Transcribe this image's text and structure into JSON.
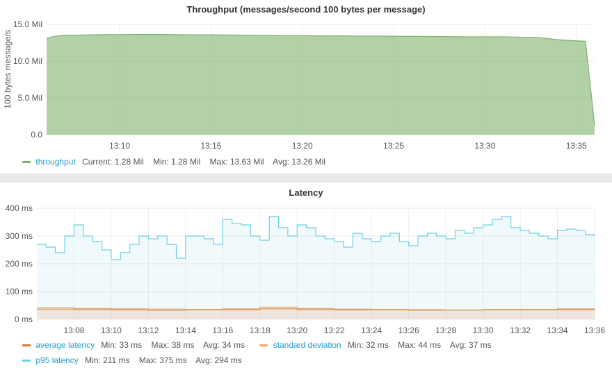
{
  "chart_data": [
    {
      "type": "area",
      "title": "Throughput (messages/second 100 bytes per message)",
      "ylabel": "100 bytes message/s",
      "y_ticks": [
        "0.0",
        "5.0 Mil",
        "10.0 Mil",
        "15.0 Mil"
      ],
      "x_ticks": [
        "13:10",
        "13:15",
        "13:20",
        "13:25",
        "13:30",
        "13:35"
      ],
      "ylim": [
        0,
        15000000
      ],
      "grid": true,
      "legend_position": "bottom-left",
      "series": [
        {
          "name": "throughput",
          "color": "#7eb26d",
          "stats": [
            "Current: 1.28 Mil",
            "Min: 1.28 Mil",
            "Max: 13.63 Mil",
            "Avg: 13.26 Mil"
          ],
          "points": [
            [
              "13:06",
              13.1
            ],
            [
              "13:06:30",
              13.4
            ],
            [
              "13:07",
              13.5
            ],
            [
              "13:08",
              13.55
            ],
            [
              "13:09",
              13.6
            ],
            [
              "13:10",
              13.6
            ],
            [
              "13:11",
              13.62
            ],
            [
              "13:12",
              13.63
            ],
            [
              "13:13",
              13.6
            ],
            [
              "13:14",
              13.58
            ],
            [
              "13:15",
              13.57
            ],
            [
              "13:16",
              13.55
            ],
            [
              "13:17",
              13.52
            ],
            [
              "13:18",
              13.5
            ],
            [
              "13:19",
              13.45
            ],
            [
              "13:20",
              13.45
            ],
            [
              "13:21",
              13.42
            ],
            [
              "13:22",
              13.43
            ],
            [
              "13:23",
              13.4
            ],
            [
              "13:24",
              13.4
            ],
            [
              "13:25",
              13.38
            ],
            [
              "13:26",
              13.36
            ],
            [
              "13:27",
              13.35
            ],
            [
              "13:28",
              13.33
            ],
            [
              "13:29",
              13.3
            ],
            [
              "13:30",
              13.3
            ],
            [
              "13:31",
              13.3
            ],
            [
              "13:32",
              13.25
            ],
            [
              "13:33",
              13.2
            ],
            [
              "13:34",
              12.9
            ],
            [
              "13:35",
              12.75
            ],
            [
              "13:35:30",
              12.7
            ],
            [
              "13:36",
              1.28
            ]
          ]
        }
      ]
    },
    {
      "type": "line",
      "title": "Latency",
      "y_ticks": [
        "0 ms",
        "100 ms",
        "200 ms",
        "300 ms",
        "400 ms"
      ],
      "x_ticks": [
        "13:08",
        "13:10",
        "13:12",
        "13:14",
        "13:16",
        "13:18",
        "13:20",
        "13:22",
        "13:24",
        "13:26",
        "13:28",
        "13:30",
        "13:32",
        "13:34",
        "13:36"
      ],
      "ylim": [
        0,
        400
      ],
      "grid": true,
      "legend_position": "bottom-left",
      "series": [
        {
          "name": "average latency",
          "color": "#e0752d",
          "stats": [
            "Min: 33 ms",
            "Max: 38 ms",
            "Avg: 34 ms"
          ],
          "points": [
            [
              "13:06",
              37
            ],
            [
              "13:08",
              35
            ],
            [
              "13:10",
              34
            ],
            [
              "13:12",
              33
            ],
            [
              "13:14",
              34
            ],
            [
              "13:16",
              35
            ],
            [
              "13:18",
              38
            ],
            [
              "13:20",
              35
            ],
            [
              "13:22",
              34
            ],
            [
              "13:24",
              34
            ],
            [
              "13:26",
              33
            ],
            [
              "13:28",
              33
            ],
            [
              "13:30",
              34
            ],
            [
              "13:32",
              34
            ],
            [
              "13:34",
              35
            ],
            [
              "13:36",
              35
            ]
          ]
        },
        {
          "name": "standard deviation",
          "color": "#f2a863",
          "stats": [
            "Min: 32 ms",
            "Max: 44 ms",
            "Avg: 37 ms"
          ],
          "points": [
            [
              "13:06",
              43
            ],
            [
              "13:08",
              39
            ],
            [
              "13:10",
              38
            ],
            [
              "13:12",
              37
            ],
            [
              "13:14",
              36
            ],
            [
              "13:16",
              38
            ],
            [
              "13:18",
              44
            ],
            [
              "13:20",
              39
            ],
            [
              "13:22",
              37
            ],
            [
              "13:24",
              36
            ],
            [
              "13:26",
              35
            ],
            [
              "13:28",
              34
            ],
            [
              "13:30",
              36
            ],
            [
              "13:32",
              36
            ],
            [
              "13:34",
              38
            ],
            [
              "13:36",
              37
            ]
          ]
        },
        {
          "name": "p95 latency",
          "color": "#6ed0e0",
          "stats": [
            "Min: 211 ms",
            "Max: 375 ms",
            "Avg: 294 ms"
          ],
          "points": [
            [
              "13:06",
              270
            ],
            [
              "13:06:30",
              260
            ],
            [
              "13:07",
              240
            ],
            [
              "13:07:30",
              300
            ],
            [
              "13:08",
              340
            ],
            [
              "13:08:30",
              300
            ],
            [
              "13:09",
              280
            ],
            [
              "13:09:30",
              250
            ],
            [
              "13:10",
              215
            ],
            [
              "13:10:30",
              240
            ],
            [
              "13:11",
              270
            ],
            [
              "13:11:30",
              300
            ],
            [
              "13:12",
              290
            ],
            [
              "13:12:30",
              300
            ],
            [
              "13:13",
              270
            ],
            [
              "13:13:30",
              220
            ],
            [
              "13:14",
              300
            ],
            [
              "13:14:30",
              300
            ],
            [
              "13:15",
              290
            ],
            [
              "13:15:30",
              270
            ],
            [
              "13:16",
              360
            ],
            [
              "13:16:30",
              345
            ],
            [
              "13:17",
              340
            ],
            [
              "13:17:30",
              300
            ],
            [
              "13:18",
              285
            ],
            [
              "13:18:30",
              370
            ],
            [
              "13:19",
              330
            ],
            [
              "13:19:30",
              300
            ],
            [
              "13:20",
              340
            ],
            [
              "13:20:30",
              330
            ],
            [
              "13:21",
              300
            ],
            [
              "13:21:30",
              290
            ],
            [
              "13:22",
              280
            ],
            [
              "13:22:30",
              260
            ],
            [
              "13:23",
              310
            ],
            [
              "13:23:30",
              290
            ],
            [
              "13:24",
              280
            ],
            [
              "13:24:30",
              300
            ],
            [
              "13:25",
              310
            ],
            [
              "13:25:30",
              280
            ],
            [
              "13:26",
              265
            ],
            [
              "13:26:30",
              300
            ],
            [
              "13:27",
              310
            ],
            [
              "13:27:30",
              300
            ],
            [
              "13:28",
              290
            ],
            [
              "13:28:30",
              320
            ],
            [
              "13:29",
              310
            ],
            [
              "13:29:30",
              330
            ],
            [
              "13:30",
              340
            ],
            [
              "13:30:30",
              360
            ],
            [
              "13:31",
              370
            ],
            [
              "13:31:30",
              330
            ],
            [
              "13:32",
              320
            ],
            [
              "13:32:30",
              310
            ],
            [
              "13:33",
              300
            ],
            [
              "13:33:30",
              290
            ],
            [
              "13:34",
              320
            ],
            [
              "13:34:30",
              325
            ],
            [
              "13:35",
              320
            ],
            [
              "13:35:30",
              305
            ],
            [
              "13:36",
              300
            ]
          ]
        }
      ]
    }
  ]
}
